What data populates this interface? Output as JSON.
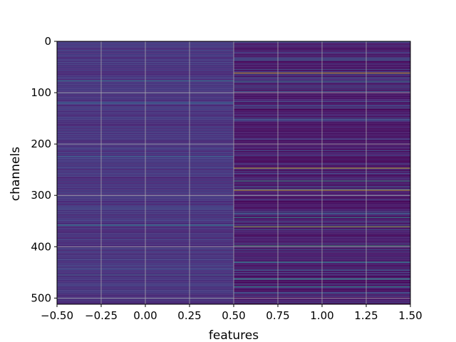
{
  "chart_data": {
    "type": "heatmap",
    "title": "",
    "xlabel": "features",
    "ylabel": "channels",
    "xlim": [
      -0.5,
      1.5
    ],
    "ylim": [
      512,
      0
    ],
    "y_inverted": true,
    "grid": true,
    "colormap": "viridis",
    "n_channels": 512,
    "columns": [
      0,
      1
    ],
    "x_ticks": [
      -0.5,
      -0.25,
      0.0,
      0.25,
      0.5,
      0.75,
      1.0,
      1.25,
      1.5
    ],
    "x_tick_labels": [
      "−0.50",
      "−0.25",
      "0.00",
      "0.25",
      "0.50",
      "0.75",
      "1.00",
      "1.25",
      "1.50"
    ],
    "y_ticks": [
      0,
      100,
      200,
      300,
      400,
      500
    ],
    "y_tick_labels": [
      "0",
      "100",
      "200",
      "300",
      "400",
      "500"
    ],
    "highlighted_rows": [
      {
        "feature": 0,
        "channel": 77,
        "value": 0.45
      },
      {
        "feature": 0,
        "channel": 120,
        "value": 0.35
      },
      {
        "feature": 0,
        "channel": 224,
        "value": 0.35
      },
      {
        "feature": 0,
        "channel": 358,
        "value": 0.5
      },
      {
        "feature": 0,
        "channel": 400,
        "value": 0.05
      },
      {
        "feature": 0,
        "channel": 455,
        "value": 0.35
      },
      {
        "feature": 1,
        "channel": 62,
        "value": 0.95
      },
      {
        "feature": 1,
        "channel": 78,
        "value": 0.45
      },
      {
        "feature": 1,
        "channel": 247,
        "value": 0.95
      },
      {
        "feature": 1,
        "channel": 272,
        "value": 0.6
      },
      {
        "feature": 1,
        "channel": 290,
        "value": 0.95
      },
      {
        "feature": 1,
        "channel": 343,
        "value": 0.55
      },
      {
        "feature": 1,
        "channel": 361,
        "value": 0.85
      },
      {
        "feature": 1,
        "channel": 398,
        "value": 0.65
      },
      {
        "feature": 1,
        "channel": 430,
        "value": 0.55
      },
      {
        "feature": 1,
        "channel": 463,
        "value": 0.6
      },
      {
        "feature": 1,
        "channel": 478,
        "value": 0.55
      }
    ]
  }
}
